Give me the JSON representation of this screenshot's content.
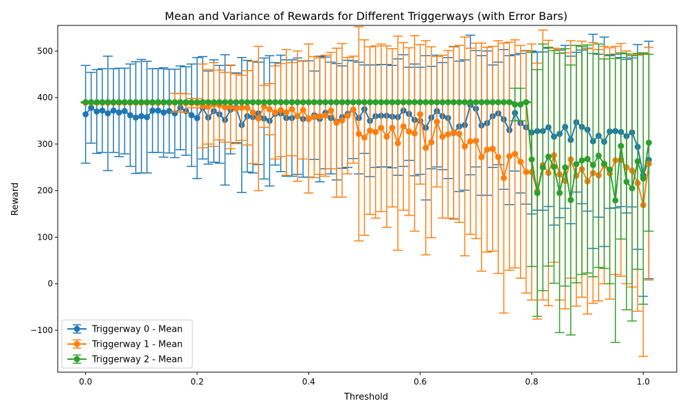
{
  "chart_data": {
    "type": "line",
    "title": "Mean and Variance of Rewards for Different Triggerways (with Error Bars)",
    "xlabel": "Threshold",
    "ylabel": "Reward",
    "xlim": [
      -0.05,
      1.06
    ],
    "ylim": [
      -190,
      555
    ],
    "xticks": [
      0.0,
      0.2,
      0.4,
      0.6,
      0.8,
      1.0
    ],
    "xtick_labels": [
      "0.0",
      "0.2",
      "0.4",
      "0.6",
      "0.8",
      "1.0"
    ],
    "yticks": [
      -100,
      0,
      100,
      200,
      300,
      400,
      500
    ],
    "ytick_labels": [
      "−100",
      "0",
      "100",
      "200",
      "300",
      "400",
      "500"
    ],
    "grid": false,
    "legend_position": "bottom-left",
    "x": [
      0.0,
      0.01,
      0.02,
      0.03,
      0.04,
      0.05,
      0.06,
      0.07,
      0.08,
      0.09,
      0.1,
      0.11,
      0.12,
      0.13,
      0.14,
      0.15,
      0.16,
      0.17,
      0.18,
      0.19,
      0.2,
      0.21,
      0.22,
      0.23,
      0.24,
      0.25,
      0.26,
      0.27,
      0.28,
      0.29,
      0.3,
      0.31,
      0.32,
      0.33,
      0.34,
      0.35,
      0.36,
      0.37,
      0.38,
      0.39,
      0.4,
      0.41,
      0.42,
      0.43,
      0.44,
      0.45,
      0.46,
      0.47,
      0.48,
      0.49,
      0.5,
      0.51,
      0.52,
      0.53,
      0.54,
      0.55,
      0.56,
      0.57,
      0.58,
      0.59,
      0.6,
      0.61,
      0.62,
      0.63,
      0.64,
      0.65,
      0.66,
      0.67,
      0.68,
      0.69,
      0.7,
      0.71,
      0.72,
      0.73,
      0.74,
      0.75,
      0.76,
      0.77,
      0.78,
      0.79,
      0.8,
      0.81,
      0.82,
      0.83,
      0.84,
      0.85,
      0.86,
      0.87,
      0.88,
      0.89,
      0.9,
      0.91,
      0.92,
      0.93,
      0.94,
      0.95,
      0.96,
      0.97,
      0.98,
      0.99,
      1.0,
      1.01
    ],
    "series": [
      {
        "name": "Triggerway 0 - Mean",
        "color": "#1f77b4",
        "mean": [
          364,
          378,
          370,
          372,
          366,
          372,
          368,
          371,
          362,
          357,
          360,
          358,
          372,
          372,
          368,
          371,
          366,
          378,
          371,
          362,
          356,
          378,
          357,
          371,
          364,
          352,
          374,
          378,
          341,
          360,
          358,
          366,
          355,
          350,
          365,
          366,
          356,
          356,
          360,
          354,
          354,
          362,
          354,
          367,
          356,
          348,
          358,
          365,
          374,
          356,
          375,
          350,
          360,
          361,
          361,
          359,
          358,
          372,
          365,
          352,
          350,
          335,
          357,
          371,
          360,
          356,
          324,
          338,
          341,
          384,
          376,
          340,
          345,
          360,
          366,
          353,
          330,
          367,
          345,
          336,
          325,
          328,
          328,
          336,
          316,
          322,
          337,
          309,
          347,
          337,
          331,
          306,
          318,
          305,
          327,
          328,
          326,
          317,
          325,
          294,
          233,
          266
        ],
        "err": [
          105,
          76,
          90,
          90,
          123,
          90,
          95,
          92,
          110,
          120,
          122,
          120,
          90,
          90,
          96,
          90,
          95,
          90,
          95,
          110,
          130,
          110,
          100,
          110,
          105,
          140,
          95,
          75,
          145,
          120,
          120,
          110,
          130,
          140,
          110,
          125,
          125,
          125,
          125,
          125,
          125,
          95,
          135,
          120,
          120,
          125,
          110,
          115,
          105,
          120,
          95,
          120,
          110,
          110,
          110,
          110,
          125,
          120,
          100,
          120,
          115,
          155,
          110,
          120,
          115,
          130,
          185,
          140,
          140,
          150,
          125,
          150,
          155,
          110,
          110,
          150,
          160,
          125,
          150,
          165,
          175,
          170,
          170,
          170,
          190,
          180,
          175,
          180,
          150,
          165,
          175,
          230,
          175,
          225,
          165,
          165,
          160,
          165,
          160,
          220,
          260,
          255
        ]
      },
      {
        "name": "Triggerway 1 - Mean",
        "color": "#ff7f0e",
        "mean": [
          389,
          389,
          389,
          389,
          389,
          389,
          389,
          389,
          389,
          389,
          389,
          389,
          389,
          389,
          389,
          389,
          389,
          389,
          388,
          388,
          388,
          382,
          380,
          385,
          384,
          379,
          380,
          376,
          378,
          378,
          368,
          355,
          381,
          375,
          368,
          373,
          368,
          375,
          360,
          373,
          355,
          358,
          360,
          361,
          372,
          346,
          351,
          361,
          374,
          322,
          314,
          329,
          326,
          335,
          316,
          335,
          302,
          338,
          327,
          323,
          364,
          292,
          304,
          348,
          316,
          321,
          325,
          322,
          295,
          306,
          307,
          272,
          288,
          290,
          272,
          227,
          274,
          279,
          262,
          240,
          240,
          199,
          255,
          238,
          276,
          235,
          221,
          267,
          232,
          246,
          220,
          238,
          233,
          255,
          237,
          265,
          266,
          250,
          243,
          216,
          169,
          258
        ],
        "err": [
          1,
          1,
          1,
          1,
          1,
          1,
          1,
          1,
          1,
          1,
          1,
          1,
          1,
          1,
          1,
          1,
          20,
          20,
          20,
          10,
          10,
          90,
          80,
          90,
          75,
          75,
          90,
          75,
          70,
          80,
          110,
          155,
          45,
          55,
          100,
          100,
          135,
          100,
          140,
          105,
          160,
          130,
          125,
          130,
          125,
          160,
          165,
          125,
          115,
          230,
          210,
          180,
          185,
          180,
          195,
          170,
          230,
          180,
          180,
          210,
          150,
          230,
          205,
          140,
          175,
          180,
          185,
          190,
          235,
          200,
          210,
          245,
          220,
          220,
          250,
          290,
          245,
          245,
          250,
          260,
          275,
          275,
          290,
          285,
          230,
          270,
          275,
          255,
          280,
          275,
          285,
          280,
          270,
          255,
          270,
          245,
          250,
          250,
          250,
          275,
          325,
          250
        ]
      },
      {
        "name": "Triggerway 2 - Mean",
        "color": "#2ca02c",
        "mean": [
          390,
          390,
          390,
          390,
          390,
          390,
          390,
          390,
          390,
          390,
          390,
          390,
          390,
          390,
          390,
          390,
          390,
          390,
          390,
          390,
          390,
          390,
          390,
          390,
          390,
          390,
          390,
          390,
          390,
          390,
          390,
          390,
          390,
          390,
          390,
          390,
          390,
          390,
          390,
          390,
          390,
          390,
          390,
          390,
          390,
          390,
          390,
          390,
          390,
          390,
          390,
          390,
          390,
          390,
          390,
          390,
          390,
          390,
          390,
          390,
          390,
          390,
          390,
          390,
          390,
          390,
          390,
          390,
          390,
          390,
          390,
          390,
          390,
          390,
          390,
          390,
          390,
          385,
          385,
          390,
          267,
          195,
          250,
          273,
          251,
          195,
          250,
          180,
          257,
          265,
          268,
          255,
          275,
          258,
          245,
          179,
          296,
          219,
          205,
          263,
          226,
          303
        ],
        "err": [
          1,
          1,
          1,
          1,
          1,
          1,
          1,
          1,
          1,
          1,
          1,
          1,
          1,
          1,
          1,
          1,
          1,
          1,
          1,
          1,
          1,
          1,
          1,
          1,
          1,
          1,
          1,
          1,
          1,
          1,
          1,
          1,
          1,
          1,
          1,
          1,
          1,
          1,
          1,
          1,
          1,
          1,
          1,
          1,
          1,
          1,
          1,
          1,
          1,
          1,
          1,
          1,
          1,
          1,
          1,
          1,
          1,
          1,
          1,
          1,
          1,
          1,
          1,
          1,
          1,
          1,
          1,
          1,
          1,
          1,
          1,
          1,
          1,
          1,
          1,
          1,
          1,
          35,
          35,
          1,
          230,
          265,
          265,
          235,
          250,
          300,
          255,
          290,
          255,
          245,
          245,
          240,
          240,
          225,
          245,
          305,
          200,
          275,
          285,
          232,
          270,
          190
        ]
      }
    ]
  }
}
